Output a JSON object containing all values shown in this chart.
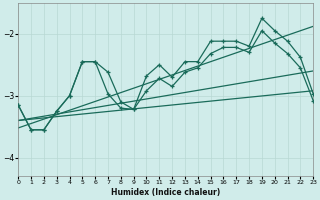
{
  "bg_color": "#d0ecea",
  "grid_color": "#b8d8d4",
  "line_color": "#1a6b5a",
  "xlabel": "Humidex (Indice chaleur)",
  "xlim": [
    0,
    23
  ],
  "ylim": [
    -4.3,
    -1.5
  ],
  "yticks": [
    -4,
    -3,
    -2
  ],
  "xticks": [
    0,
    1,
    2,
    3,
    4,
    5,
    6,
    7,
    8,
    9,
    10,
    11,
    12,
    13,
    14,
    15,
    16,
    17,
    18,
    19,
    20,
    21,
    22,
    23
  ],
  "curve1_x": [
    0,
    1,
    2,
    3,
    4,
    5,
    6,
    7,
    8,
    9,
    10,
    11,
    12,
    13,
    14,
    15,
    16,
    17,
    18,
    19,
    20,
    21,
    22,
    23
  ],
  "curve1_y": [
    -3.15,
    -3.55,
    -3.55,
    -3.25,
    -3.0,
    -2.45,
    -2.45,
    -2.62,
    -3.1,
    -3.22,
    -2.68,
    -2.5,
    -2.7,
    -2.45,
    -2.45,
    -2.12,
    -2.12,
    -2.12,
    -2.2,
    -1.75,
    -1.95,
    -2.12,
    -2.38,
    -2.97
  ],
  "curve2_x": [
    0,
    1,
    2,
    3,
    4,
    5,
    6,
    7,
    8,
    9,
    10,
    11,
    12,
    13,
    14,
    15,
    16,
    17,
    18,
    19,
    20,
    21,
    22,
    23
  ],
  "curve2_y": [
    -3.15,
    -3.55,
    -3.55,
    -3.25,
    -3.0,
    -2.45,
    -2.45,
    -2.97,
    -3.2,
    -3.22,
    -2.92,
    -2.72,
    -2.85,
    -2.62,
    -2.55,
    -2.32,
    -2.22,
    -2.22,
    -2.3,
    -1.95,
    -2.15,
    -2.32,
    -2.55,
    -3.08
  ],
  "line1_x": [
    0,
    23
  ],
  "line1_y": [
    -3.4,
    -2.92
  ],
  "line2_x": [
    0,
    23
  ],
  "line2_y": [
    -3.4,
    -2.6
  ],
  "line3_x": [
    0,
    23
  ],
  "line3_y": [
    -3.52,
    -1.88
  ]
}
